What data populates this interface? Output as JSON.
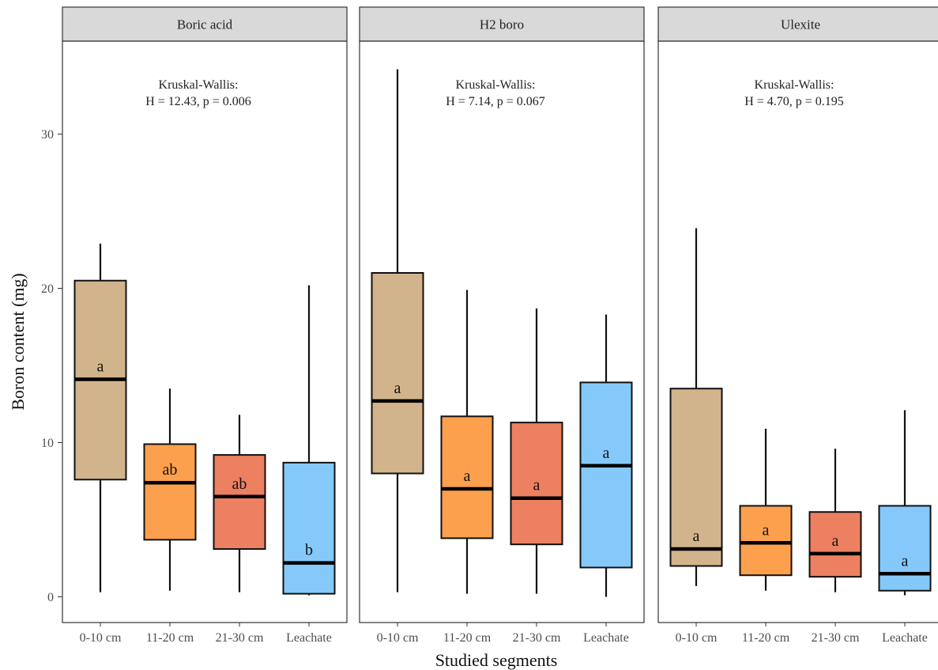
{
  "chart_data": {
    "type": "boxplot",
    "xlabel": "Studied segments",
    "ylabel": "Boron content (mg)",
    "ylim": [
      -1.5,
      35.5
    ],
    "yticks": [
      0,
      10,
      20,
      30
    ],
    "categories": [
      "0-10 cm",
      "11-20 cm",
      "21-30 cm",
      "Leachate"
    ],
    "fill_colors": [
      "#d2b48c",
      "#fca04d",
      "#ec8060",
      "#85c9fb"
    ],
    "strip_color": "#d9d9d9",
    "grid": false,
    "legend": "none",
    "panels": [
      {
        "name": "Boric acid",
        "annotation": [
          "Kruskal-Wallis:",
          "H = 12.43, p = 0.006"
        ],
        "boxes": [
          {
            "category": "0-10 cm",
            "min": 0.3,
            "q1": 7.6,
            "median": 14.1,
            "q3": 20.5,
            "max": 22.9,
            "letter": "a"
          },
          {
            "category": "11-20 cm",
            "min": 0.4,
            "q1": 3.7,
            "median": 7.4,
            "q3": 9.9,
            "max": 13.5,
            "letter": "ab"
          },
          {
            "category": "21-30 cm",
            "min": 0.3,
            "q1": 3.1,
            "median": 6.5,
            "q3": 9.2,
            "max": 11.8,
            "letter": "ab"
          },
          {
            "category": "Leachate",
            "min": 0.1,
            "q1": 0.2,
            "median": 2.2,
            "q3": 8.7,
            "max": 20.2,
            "letter": "b"
          }
        ]
      },
      {
        "name": "H2 boro",
        "annotation": [
          "Kruskal-Wallis:",
          "H = 7.14, p = 0.067"
        ],
        "boxes": [
          {
            "category": "0-10 cm",
            "min": 0.3,
            "q1": 8.0,
            "median": 12.7,
            "q3": 21.0,
            "max": 34.2,
            "letter": "a"
          },
          {
            "category": "11-20 cm",
            "min": 0.2,
            "q1": 3.8,
            "median": 7.0,
            "q3": 11.7,
            "max": 19.9,
            "letter": "a"
          },
          {
            "category": "21-30 cm",
            "min": 0.2,
            "q1": 3.4,
            "median": 6.4,
            "q3": 11.3,
            "max": 18.7,
            "letter": "a"
          },
          {
            "category": "Leachate",
            "min": 0.0,
            "q1": 1.9,
            "median": 8.5,
            "q3": 13.9,
            "max": 18.3,
            "letter": "a"
          }
        ]
      },
      {
        "name": "Ulexite",
        "annotation": [
          "Kruskal-Wallis:",
          "H = 4.70, p = 0.195"
        ],
        "boxes": [
          {
            "category": "0-10 cm",
            "min": 0.7,
            "q1": 2.0,
            "median": 3.1,
            "q3": 13.5,
            "max": 23.9,
            "letter": "a"
          },
          {
            "category": "11-20 cm",
            "min": 0.4,
            "q1": 1.4,
            "median": 3.5,
            "q3": 5.9,
            "max": 10.9,
            "letter": "a"
          },
          {
            "category": "21-30 cm",
            "min": 0.3,
            "q1": 1.3,
            "median": 2.8,
            "q3": 5.5,
            "max": 9.6,
            "letter": "a"
          },
          {
            "category": "Leachate",
            "min": 0.1,
            "q1": 0.4,
            "median": 1.5,
            "q3": 5.9,
            "max": 12.1,
            "letter": "a"
          }
        ]
      }
    ]
  }
}
